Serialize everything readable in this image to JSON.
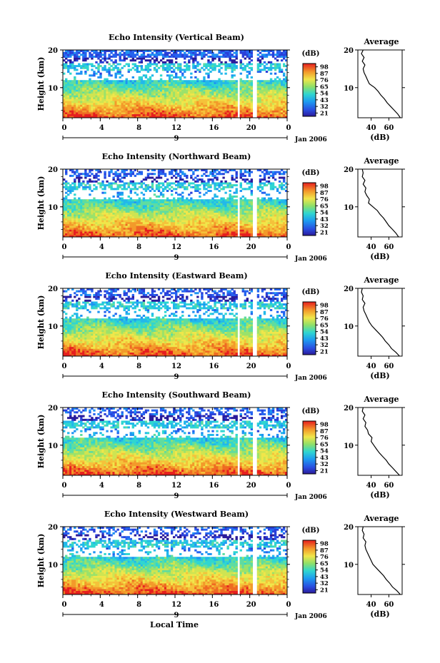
{
  "figure": {
    "xlabel": "Local Time",
    "month_label": "Jan 2006",
    "day_marker": "9",
    "colorbar_unit": "(dB)",
    "colorbar_ticks": [
      "21",
      "32",
      "43",
      "54",
      "65",
      "76",
      "87",
      "98"
    ]
  },
  "chart_data": [
    {
      "type": "heatmap",
      "title": "Echo Intensity (Vertical Beam)",
      "ylabel": "Height (km)",
      "x_ticks": [
        "0",
        "4",
        "8",
        "12",
        "16",
        "20",
        "0"
      ],
      "y_ticks": [
        "20",
        "10"
      ],
      "xlim": [
        0,
        24
      ],
      "ylim": [
        2,
        20
      ],
      "color_range_db": [
        21,
        98
      ],
      "data_gaps_hours": [
        [
          18.6,
          18.9
        ],
        [
          20.4,
          20.8
        ]
      ],
      "description_values": {
        "near_surface_db": 90,
        "mid_db": 55,
        "top_db": 30
      }
    },
    {
      "type": "heatmap",
      "title": "Echo Intensity (Northward Beam)",
      "ylabel": "Height (km)",
      "x_ticks": [
        "0",
        "4",
        "8",
        "12",
        "16",
        "20",
        "0"
      ],
      "y_ticks": [
        "20",
        "10"
      ],
      "xlim": [
        0,
        24
      ],
      "ylim": [
        2,
        20
      ],
      "color_range_db": [
        21,
        98
      ],
      "data_gaps_hours": [
        [
          18.6,
          18.9
        ],
        [
          20.4,
          20.8
        ]
      ]
    },
    {
      "type": "heatmap",
      "title": "Echo Intensity (Eastward Beam)",
      "ylabel": "Height (km)",
      "x_ticks": [
        "0",
        "4",
        "8",
        "12",
        "16",
        "20",
        "0"
      ],
      "y_ticks": [
        "20",
        "10"
      ],
      "xlim": [
        0,
        24
      ],
      "ylim": [
        2,
        20
      ],
      "color_range_db": [
        21,
        98
      ],
      "data_gaps_hours": [
        [
          18.6,
          18.9
        ],
        [
          20.4,
          20.8
        ]
      ]
    },
    {
      "type": "heatmap",
      "title": "Echo Intensity (Southward Beam)",
      "ylabel": "Height (km)",
      "x_ticks": [
        "0",
        "4",
        "8",
        "12",
        "16",
        "20",
        "0"
      ],
      "y_ticks": [
        "20",
        "10"
      ],
      "xlim": [
        0,
        24
      ],
      "ylim": [
        2,
        20
      ],
      "color_range_db": [
        21,
        98
      ],
      "data_gaps_hours": [
        [
          18.6,
          18.9
        ],
        [
          20.4,
          20.8
        ]
      ]
    },
    {
      "type": "heatmap",
      "title": "Echo Intensity (Westward Beam)",
      "ylabel": "Height (km)",
      "x_ticks": [
        "0",
        "4",
        "8",
        "12",
        "16",
        "20",
        "0"
      ],
      "y_ticks": [
        "20",
        "10"
      ],
      "xlim": [
        0,
        24
      ],
      "ylim": [
        2,
        20
      ],
      "color_range_db": [
        21,
        98
      ],
      "data_gaps_hours": [
        [
          18.6,
          18.9
        ],
        [
          20.4,
          20.8
        ]
      ]
    }
  ],
  "profiles": {
    "title": "Average",
    "xlabel": "(dB)",
    "x_ticks": [
      "40",
      "60"
    ],
    "xlim": [
      25,
      75
    ],
    "ylim": [
      2,
      20
    ],
    "y_ticks": [
      "20",
      "10"
    ],
    "heights_km": [
      2,
      3,
      4,
      5,
      6,
      7,
      8,
      9,
      10,
      11,
      12,
      13,
      14,
      15,
      16,
      17,
      18,
      19,
      20
    ],
    "series": [
      {
        "values": [
          73,
          70,
          66,
          62,
          58,
          55,
          51,
          48,
          44,
          38,
          36,
          34,
          32,
          31,
          33,
          30,
          32,
          29,
          31
        ]
      },
      {
        "values": [
          71,
          68,
          64,
          60,
          57,
          54,
          50,
          47,
          42,
          37,
          38,
          35,
          33,
          34,
          31,
          33,
          30,
          31,
          30
        ]
      },
      {
        "values": [
          72,
          68,
          63,
          60,
          56,
          53,
          49,
          45,
          41,
          38,
          36,
          34,
          32,
          31,
          33,
          30,
          31,
          29,
          30
        ]
      },
      {
        "values": [
          72,
          68,
          64,
          60,
          57,
          53,
          49,
          46,
          43,
          40,
          41,
          37,
          36,
          33,
          34,
          31,
          33,
          30,
          31
        ]
      },
      {
        "values": [
          73,
          69,
          64,
          61,
          57,
          54,
          50,
          46,
          42,
          40,
          38,
          36,
          34,
          33,
          34,
          31,
          32,
          30,
          31
        ]
      }
    ]
  }
}
